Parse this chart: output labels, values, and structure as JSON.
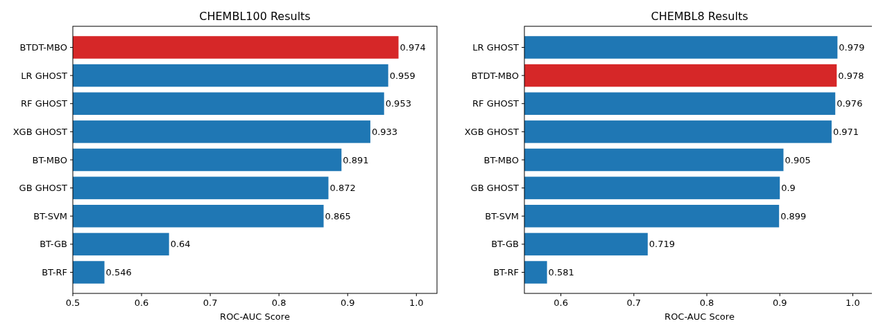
{
  "chart_data": [
    {
      "type": "bar",
      "orientation": "horizontal",
      "title": "CHEMBL100 Results",
      "xlabel": "ROC-AUC Score",
      "categories": [
        "BTDT-MBO",
        "LR GHOST",
        "RF GHOST",
        "XGB GHOST",
        "BT-MBO",
        "GB GHOST",
        "BT-SVM",
        "BT-GB",
        "BT-RF"
      ],
      "values": [
        0.974,
        0.959,
        0.953,
        0.933,
        0.891,
        0.872,
        0.865,
        0.64,
        0.546
      ],
      "colors": [
        "#d62728",
        "#1f77b4",
        "#1f77b4",
        "#1f77b4",
        "#1f77b4",
        "#1f77b4",
        "#1f77b4",
        "#1f77b4",
        "#1f77b4"
      ],
      "xlim": [
        0.5,
        1.03
      ],
      "xticks": [
        0.5,
        0.6,
        0.7,
        0.8,
        0.9,
        {
          "value": 1,
          "label": "1.0"
        }
      ],
      "data_labels": true
    },
    {
      "type": "bar",
      "orientation": "horizontal",
      "title": "CHEMBL8 Results",
      "xlabel": "ROC-AUC Score",
      "categories": [
        "LR GHOST",
        "BTDT-MBO",
        "RF GHOST",
        "XGB GHOST",
        "BT-MBO",
        "GB GHOST",
        "BT-SVM",
        "BT-GB",
        "BT-RF"
      ],
      "values": [
        0.979,
        0.978,
        0.976,
        0.971,
        0.905,
        0.9,
        0.899,
        0.719,
        0.581
      ],
      "colors": [
        "#1f77b4",
        "#d62728",
        "#1f77b4",
        "#1f77b4",
        "#1f77b4",
        "#1f77b4",
        "#1f77b4",
        "#1f77b4",
        "#1f77b4"
      ],
      "xlim": [
        0.55,
        1.03
      ],
      "xticks": [
        0.6,
        0.7,
        0.8,
        0.9,
        {
          "value": 1,
          "label": "1.0"
        }
      ],
      "data_labels": true
    }
  ]
}
